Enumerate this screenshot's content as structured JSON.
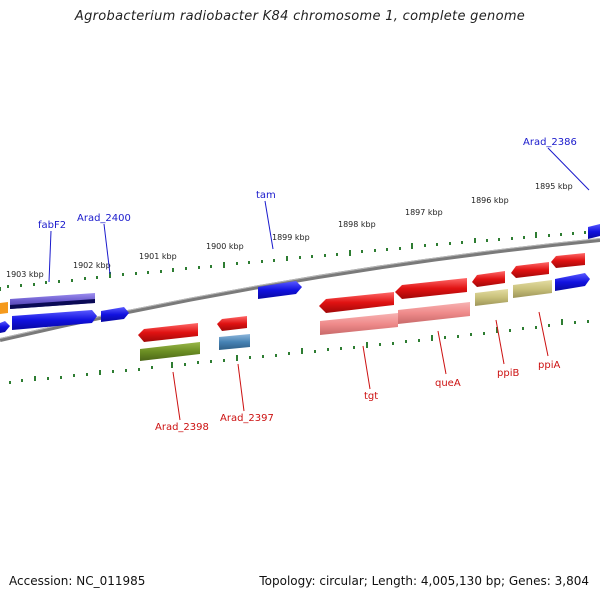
{
  "title": "Agrobacterium radiobacter K84 chromosome 1, complete genome",
  "footer": {
    "accession": "Accession: NC_011985",
    "summary": "Topology: circular; Length: 4,005,130 bp; Genes: 3,804"
  },
  "scale_labels": [
    "1903 kbp",
    "1902 kbp",
    "1901 kbp",
    "1900 kbp",
    "1899 kbp",
    "1898 kbp",
    "1897 kbp",
    "1896 kbp",
    "1895 kbp"
  ],
  "gene_labels_top": [
    {
      "name": "fabF2",
      "color": "#1a1acc"
    },
    {
      "name": "Arad_2400",
      "color": "#1a1acc"
    },
    {
      "name": "tam",
      "color": "#1a1acc"
    },
    {
      "name": "Arad_2386",
      "color": "#1a1acc"
    }
  ],
  "gene_labels_bottom": [
    {
      "name": "Arad_2398",
      "color": "#cc1111"
    },
    {
      "name": "Arad_2397",
      "color": "#cc1111"
    },
    {
      "name": "tgt",
      "color": "#cc1111"
    },
    {
      "name": "queA",
      "color": "#cc1111"
    },
    {
      "name": "ppiB",
      "color": "#cc1111"
    },
    {
      "name": "ppiA",
      "color": "#cc1111"
    }
  ],
  "colors": {
    "backbone": "#8a8a8a",
    "ticks": "#2e7d32",
    "forward_gene": "#1212e0",
    "reverse_gene": "#e01212",
    "reverse_feature": "#f08a8a",
    "olive_feature": "#6b8e23",
    "khaki_feature": "#c8c07a",
    "steel_feature": "#4682b4",
    "purple_feature": "#6a5acd"
  }
}
